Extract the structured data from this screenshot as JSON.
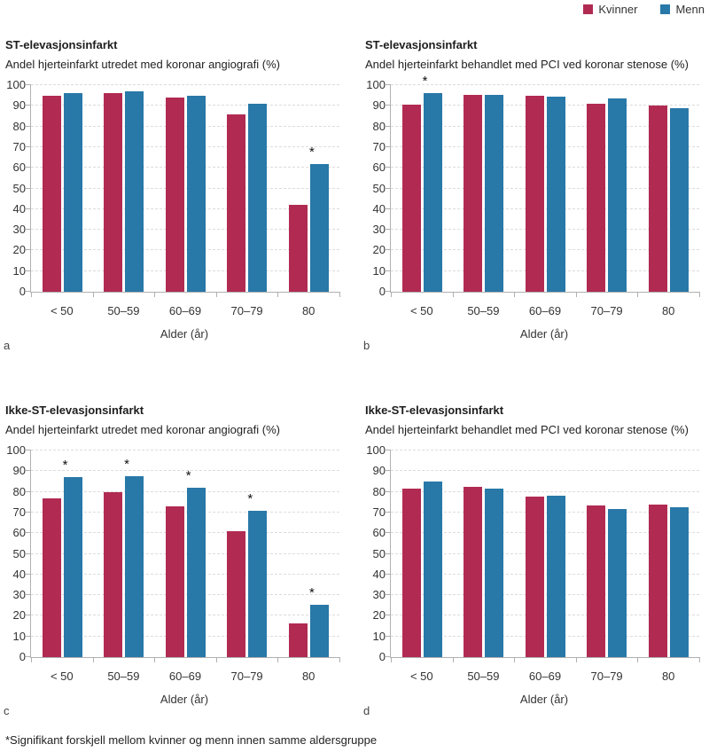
{
  "legend": {
    "items": [
      {
        "label": "Kvinner",
        "color": "#b12a52"
      },
      {
        "label": "Menn",
        "color": "#2878a8"
      }
    ]
  },
  "footnote": "*Signifikant forskjell mellom kvinner og menn innen samme aldersgruppe",
  "axis_colors": {
    "line": "#b0b0b0",
    "grid": "#dcdcdc",
    "text": "#333333"
  },
  "chart_data": [
    {
      "type": "bar",
      "panel_letter": "a",
      "title": "ST-elevasjonsinfarkt",
      "subtitle": "Andel hjerteinfarkt utredet med koronar angiografi (%)",
      "xlabel": "Alder (år)",
      "ylabel": "",
      "ylim": [
        0,
        100
      ],
      "ytick_step": 10,
      "grid": "dashed-horizontal",
      "categories": [
        "< 50",
        "50–59",
        "60–69",
        "70–79",
        "80"
      ],
      "series": [
        {
          "name": "Kvinner",
          "values": [
            95,
            96,
            94,
            86,
            42
          ]
        },
        {
          "name": "Menn",
          "values": [
            96,
            97,
            95,
            91,
            62
          ]
        }
      ],
      "significant": [
        false,
        false,
        false,
        false,
        true
      ]
    },
    {
      "type": "bar",
      "panel_letter": "b",
      "title": "ST-elevasjonsinfarkt",
      "subtitle": "Andel hjerteinfarkt behandlet med PCI ved koronar stenose (%)",
      "xlabel": "Alder (år)",
      "ylabel": "",
      "ylim": [
        0,
        100
      ],
      "ytick_step": 10,
      "grid": "dashed-horizontal",
      "categories": [
        "< 50",
        "50–59",
        "60–69",
        "70–79",
        "80"
      ],
      "series": [
        {
          "name": "Kvinner",
          "values": [
            90.5,
            95.5,
            95,
            91,
            90
          ]
        },
        {
          "name": "Menn",
          "values": [
            96,
            95.5,
            94.5,
            93.5,
            89
          ]
        }
      ],
      "significant": [
        true,
        false,
        false,
        false,
        false
      ]
    },
    {
      "type": "bar",
      "panel_letter": "c",
      "title": "Ikke-ST-elevasjonsinfarkt",
      "subtitle": "Andel hjerteinfarkt utredet med koronar angiografi (%)",
      "xlabel": "Alder (år)",
      "ylabel": "",
      "ylim": [
        0,
        100
      ],
      "ytick_step": 10,
      "grid": "dashed-horizontal",
      "categories": [
        "< 50",
        "50–59",
        "60–69",
        "70–79",
        "80"
      ],
      "series": [
        {
          "name": "Kvinner",
          "values": [
            77,
            80,
            73,
            61,
            16.5
          ]
        },
        {
          "name": "Menn",
          "values": [
            87,
            87.5,
            82,
            71,
            25.5
          ]
        }
      ],
      "significant": [
        true,
        true,
        true,
        true,
        true
      ]
    },
    {
      "type": "bar",
      "panel_letter": "d",
      "title": "Ikke-ST-elevasjonsinfarkt",
      "subtitle": "Andel hjerteinfarkt behandlet med PCI ved koronar stenose (%)",
      "xlabel": "Alder (år)",
      "ylabel": "",
      "ylim": [
        0,
        100
      ],
      "ytick_step": 10,
      "grid": "dashed-horizontal",
      "categories": [
        "< 50",
        "50–59",
        "60–69",
        "70–79",
        "80"
      ],
      "series": [
        {
          "name": "Kvinner",
          "values": [
            81.5,
            82.5,
            77.5,
            73.5,
            74
          ]
        },
        {
          "name": "Menn",
          "values": [
            85,
            81.5,
            78,
            71.5,
            72.5
          ]
        }
      ],
      "significant": [
        false,
        false,
        false,
        false,
        false
      ]
    }
  ]
}
